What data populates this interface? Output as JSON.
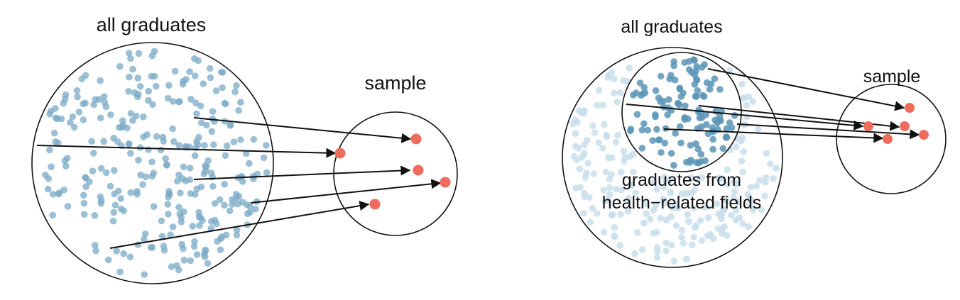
{
  "left_panel": {
    "population_label": "all graduates",
    "sample_label": "sample"
  },
  "right_panel": {
    "population_label": "all graduates",
    "sample_label": "sample",
    "subgroup_label_line1": "graduates from",
    "subgroup_label_line2": "health−related fields"
  },
  "colors": {
    "dot": "#7aaac6",
    "dot_dark": "#5b95b6",
    "dot_faint": "#c9dfeb",
    "sample_point": "#ee6b5e",
    "outline": "#111111"
  }
}
